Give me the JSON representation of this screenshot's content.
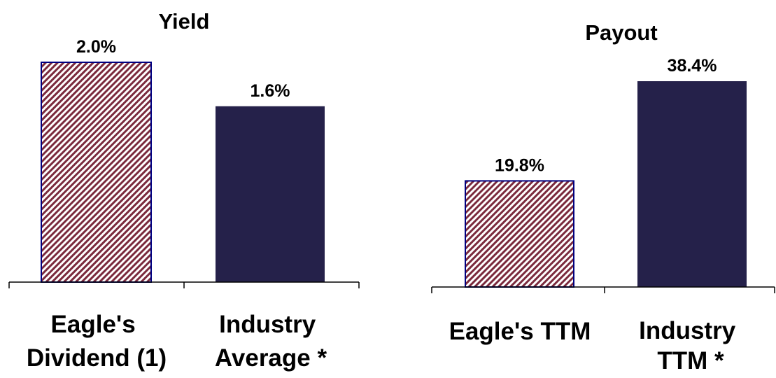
{
  "colors": {
    "eagle_stripe": "#7b2a3d",
    "eagle_fill": "#ffffff",
    "industry_fill": "#25214a",
    "bar_outline": "#000080",
    "axis": "#000000"
  },
  "chart_data": [
    {
      "type": "bar",
      "title": "Yield",
      "categories": [
        [
          "Eagle's",
          "Dividend (1)"
        ],
        [
          "Industry",
          "Average *"
        ]
      ],
      "values": [
        2.0,
        1.6
      ],
      "labels": [
        "2.0%",
        "1.6%"
      ],
      "unit": "%",
      "ylim": [
        0,
        2.0
      ],
      "grid": false,
      "legend": "none",
      "bar_styles": [
        "hatched",
        "solid"
      ]
    },
    {
      "type": "bar",
      "title": "Payout",
      "categories": [
        [
          "Eagle's TTM"
        ],
        [
          "Industry",
          "TTM *"
        ]
      ],
      "values": [
        19.8,
        38.4
      ],
      "labels": [
        "19.8%",
        "38.4%"
      ],
      "unit": "%",
      "ylim": [
        0,
        38.4
      ],
      "grid": false,
      "legend": "none",
      "bar_styles": [
        "hatched",
        "solid"
      ]
    }
  ]
}
